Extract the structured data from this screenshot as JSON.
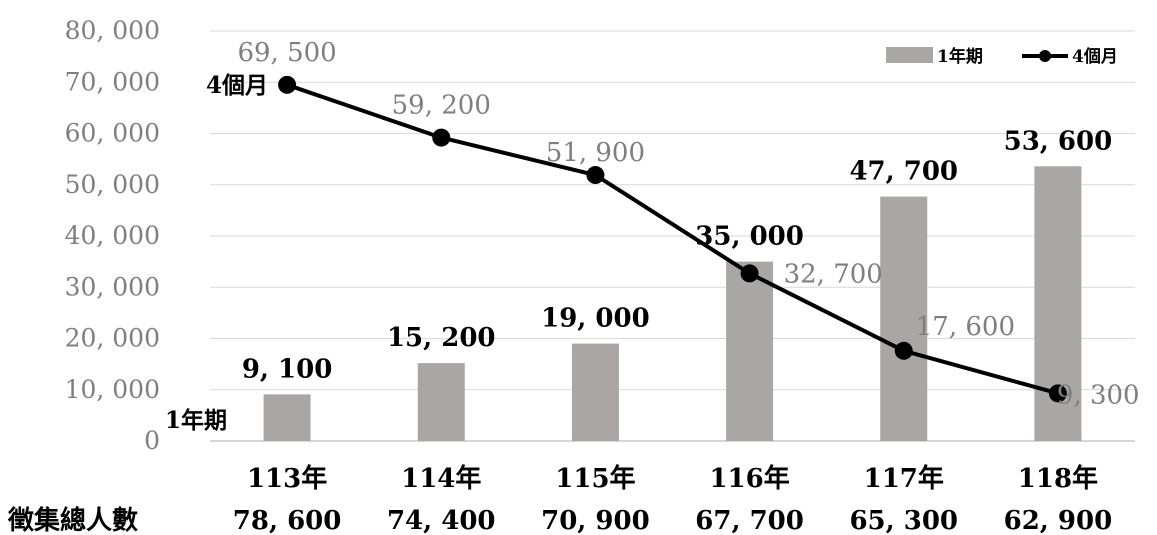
{
  "chart_data": {
    "type": "bar",
    "categories": [
      "113年",
      "114年",
      "115年",
      "116年",
      "117年",
      "118年"
    ],
    "series": [
      {
        "name": "1年期",
        "type": "bar",
        "values": [
          9100,
          15200,
          19000,
          35000,
          47700,
          53600
        ],
        "labels": [
          "9, 100",
          "15, 200",
          "19, 000",
          "35, 000",
          "47, 700",
          "53, 600"
        ],
        "color": "#aaa6a6"
      },
      {
        "name": "4個月",
        "type": "line",
        "values": [
          69500,
          59200,
          51900,
          32700,
          17600,
          9300
        ],
        "labels": [
          "69, 500",
          "59, 200",
          "51, 900",
          "32, 700",
          "17, 600",
          "9, 300"
        ],
        "color": "#000000"
      }
    ],
    "ylim": [
      0,
      80000
    ],
    "yticks": [
      {
        "value": 0,
        "label": "0"
      },
      {
        "value": 10000,
        "label": "10, 000"
      },
      {
        "value": 20000,
        "label": "20, 000"
      },
      {
        "value": 30000,
        "label": "30, 000"
      },
      {
        "value": 40000,
        "label": "40, 000"
      },
      {
        "value": 50000,
        "label": "50, 000"
      },
      {
        "value": 60000,
        "label": "60, 000"
      },
      {
        "value": 70000,
        "label": "70, 000"
      },
      {
        "value": 80000,
        "label": "80, 000"
      }
    ],
    "grid": true,
    "legend": "top-right",
    "legend_entries": [
      "1年期",
      "4個月"
    ],
    "series_labels": {
      "bar": "1年期",
      "line": "4個月"
    },
    "totals": {
      "label": "徵集總人數",
      "values": [
        "78, 600",
        "74, 400",
        "70, 900",
        "67, 700",
        "65, 300",
        "62, 900"
      ]
    },
    "colors": {
      "bar": "#aaa6a6",
      "line": "#000000",
      "grid": "#d9d9d9",
      "axis": "#c8c8c8"
    }
  }
}
